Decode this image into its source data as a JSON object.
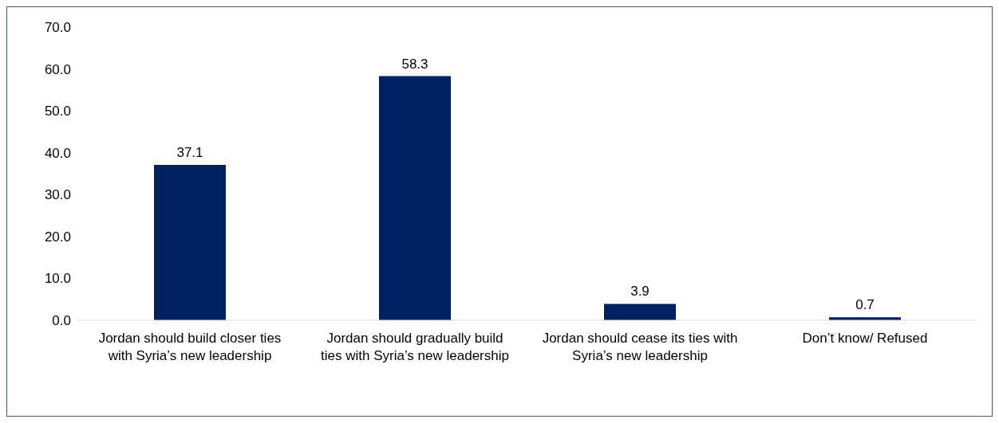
{
  "chart_data": {
    "type": "bar",
    "categories": [
      "Jordan should build closer ties with Syria’s new leadership",
      "Jordan should gradually build ties with Syria’s new leadership",
      "Jordan should cease its ties with Syria’s new leadership",
      "Don’t know/ Refused"
    ],
    "values": [
      37.1,
      58.3,
      3.9,
      0.7
    ],
    "color": "#002060",
    "ylim": [
      0,
      70
    ],
    "yticks": [
      {
        "value": 0,
        "label": "0.0"
      },
      {
        "value": 10,
        "label": "10.0"
      },
      {
        "value": 20,
        "label": "20.0"
      },
      {
        "value": 30,
        "label": "30.0"
      },
      {
        "value": 40,
        "label": "40.0"
      },
      {
        "value": 50,
        "label": "50.0"
      },
      {
        "value": 60,
        "label": "60.0"
      },
      {
        "value": 70,
        "label": "70.0"
      }
    ],
    "grid": false,
    "data_labels": true
  }
}
